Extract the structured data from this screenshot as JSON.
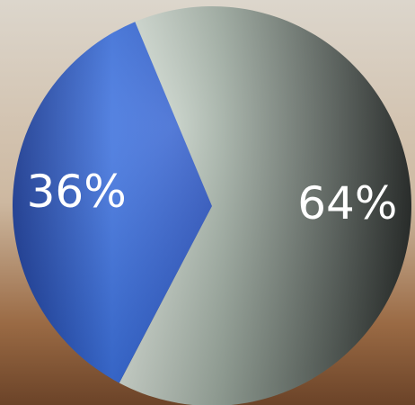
{
  "chart_data": {
    "type": "pie",
    "values": [
      36,
      64
    ],
    "value_labels": [
      "36%",
      "64%"
    ],
    "colors": [
      "#2f62d6",
      "#8f9c93"
    ]
  }
}
